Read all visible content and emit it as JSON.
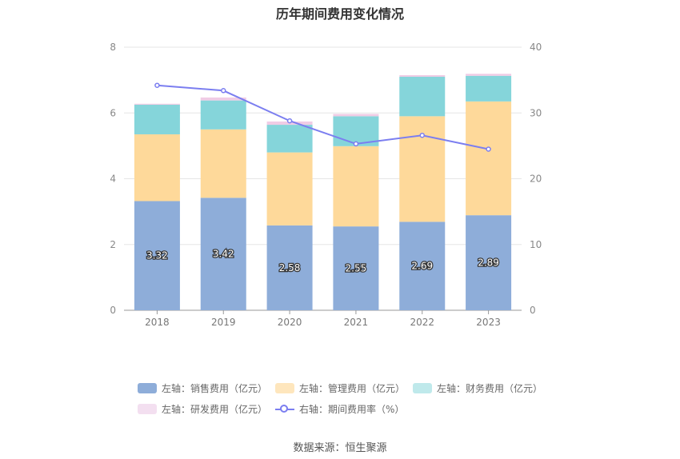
{
  "chart_data": {
    "type": "bar",
    "title": "历年期间费用变化情况",
    "categories": [
      "2018",
      "2019",
      "2020",
      "2021",
      "2022",
      "2023"
    ],
    "stacked": true,
    "series": [
      {
        "name": "左轴：销售费用（亿元）",
        "axis": "left",
        "type": "bar",
        "color": "#8eadd9",
        "values": [
          3.32,
          3.42,
          2.58,
          2.55,
          2.69,
          2.89
        ]
      },
      {
        "name": "左轴：管理费用（亿元）",
        "axis": "left",
        "type": "bar",
        "color": "#fed99a",
        "values": [
          2.03,
          2.08,
          2.22,
          2.44,
          3.21,
          3.46
        ]
      },
      {
        "name": "左轴：财务费用（亿元）",
        "axis": "left",
        "type": "bar",
        "color": "#85d5da",
        "values": [
          0.9,
          0.88,
          0.84,
          0.91,
          1.2,
          0.78
        ]
      },
      {
        "name": "左轴：研发费用（亿元）",
        "axis": "left",
        "type": "bar",
        "color": "#f0cce5",
        "values": [
          0.03,
          0.09,
          0.1,
          0.07,
          0.05,
          0.06
        ]
      },
      {
        "name": "右轴：期间费用率（%）",
        "axis": "right",
        "type": "line",
        "color": "#7b7ef0",
        "values": [
          34.2,
          33.4,
          28.8,
          25.3,
          26.6,
          24.5
        ]
      }
    ],
    "ylim_left": [
      0,
      8
    ],
    "yticks_left": [
      "0",
      "2",
      "4",
      "6",
      "8"
    ],
    "ylim_right": [
      0,
      40
    ],
    "yticks_right": [
      "0",
      "10",
      "20",
      "30",
      "40"
    ],
    "data_labels": [
      "3.32",
      "3.42",
      "2.58",
      "2.55",
      "2.69",
      "2.89"
    ],
    "grid": true,
    "legend_position": "bottom"
  },
  "source": "数据来源：恒生聚源"
}
